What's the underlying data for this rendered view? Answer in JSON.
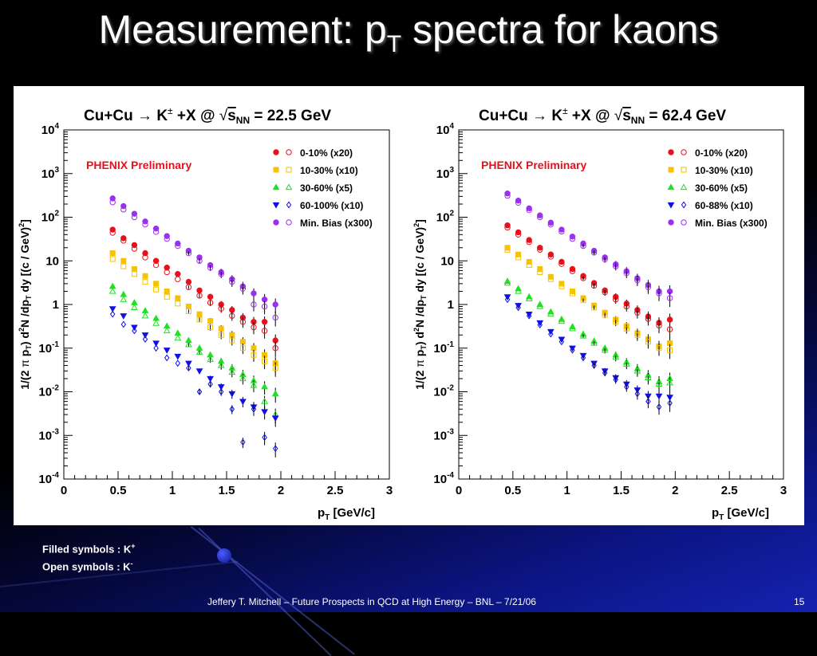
{
  "slide": {
    "title_main": "Measurement: p",
    "title_sub": "T",
    "title_rest": " spectra for kaons",
    "footer": "Jeffery T. Mitchell – Future Prospects in QCD at High Energy – BNL – 7/21/06",
    "page_number": "15",
    "note_filled": "Filled symbols : K",
    "note_filled_sup": "+",
    "note_open": "Open symbols :  K",
    "note_open_sup": "-"
  },
  "colors": {
    "red": "#e8101a",
    "yellow": "#f7c200",
    "green": "#1ee21e",
    "blue": "#1010e6",
    "purple": "#9a30f0"
  },
  "chart_data": [
    {
      "type": "scatter",
      "title": "Cu+Cu → K± +X @  √sNN = 22.5 GeV",
      "title_left": "Cu+Cu",
      "title_mid": "K",
      "title_pm": "±",
      "title_x": "+X @",
      "title_snn": "s",
      "title_nn": "NN",
      "title_energy": "= 22.5 GeV",
      "annotation": "PHENIX Preliminary",
      "xlabel": "p",
      "xlabel_sub": "T",
      "xlabel_unit": "[GeV/c]",
      "ylabel": "1/(2 π p_T) d²N /dp_T dy [(c / GeV)²]",
      "xlim": [
        0,
        3
      ],
      "ylim": [
        0.0001,
        10000
      ],
      "log_y": true,
      "x_ticks": [
        "0",
        "0.5",
        "1",
        "1.5",
        "2",
        "2.5",
        "3"
      ],
      "y_ticks": [
        {
          "base": "10",
          "exp": "-4"
        },
        {
          "base": "10",
          "exp": "-3"
        },
        {
          "base": "10",
          "exp": "-2"
        },
        {
          "base": "10",
          "exp": "-1"
        },
        {
          "base": "1",
          "exp": ""
        },
        {
          "base": "10",
          "exp": ""
        },
        {
          "base": "10",
          "exp": "2"
        },
        {
          "base": "10",
          "exp": "3"
        },
        {
          "base": "10",
          "exp": "4"
        }
      ],
      "legend_position": "top-right",
      "series": [
        {
          "name": "0-10% (x20)",
          "color": "#e8101a",
          "marker": "circle",
          "x": [
            0.45,
            0.55,
            0.65,
            0.75,
            0.85,
            0.95,
            1.05,
            1.15,
            1.25,
            1.35,
            1.45,
            1.55,
            1.65,
            1.75,
            1.85,
            1.95
          ],
          "kplus": [
            52,
            33,
            23,
            15,
            10,
            7,
            5,
            3.3,
            2.1,
            1.5,
            1.0,
            0.75,
            0.5,
            0.4,
            0.4,
            0.15
          ],
          "kminus": [
            44,
            29,
            19,
            12,
            8,
            5.5,
            3.8,
            2.5,
            1.6,
            1.1,
            0.8,
            0.55,
            0.4,
            0.3,
            0.25,
            0.1
          ]
        },
        {
          "name": "10-30% (x10)",
          "color": "#f7c200",
          "marker": "square",
          "x": [
            0.45,
            0.55,
            0.65,
            0.75,
            0.85,
            0.95,
            1.05,
            1.15,
            1.25,
            1.35,
            1.45,
            1.55,
            1.65,
            1.75,
            1.85,
            1.95
          ],
          "kplus": [
            15,
            10,
            6.5,
            4.5,
            3,
            2,
            1.4,
            0.9,
            0.6,
            0.42,
            0.28,
            0.2,
            0.14,
            0.1,
            0.07,
            0.045
          ],
          "kminus": [
            11,
            7.5,
            5,
            3.3,
            2.2,
            1.5,
            1.05,
            0.7,
            0.45,
            0.3,
            0.2,
            0.15,
            0.1,
            0.07,
            0.05,
            0.035
          ]
        },
        {
          "name": "30-60% (x5)",
          "color": "#1ee21e",
          "marker": "triangle",
          "x": [
            0.45,
            0.55,
            0.65,
            0.75,
            0.85,
            0.95,
            1.05,
            1.15,
            1.25,
            1.35,
            1.45,
            1.55,
            1.65,
            1.75,
            1.85,
            1.95
          ],
          "kplus": [
            2.6,
            1.7,
            1.1,
            0.72,
            0.48,
            0.32,
            0.22,
            0.15,
            0.1,
            0.07,
            0.05,
            0.035,
            0.025,
            0.018,
            0.013,
            0.009
          ],
          "kminus": [
            2.0,
            1.3,
            0.85,
            0.55,
            0.37,
            0.25,
            0.17,
            0.12,
            0.08,
            0.055,
            0.04,
            0.028,
            0.02,
            0.014,
            0.006,
            0.003
          ]
        },
        {
          "name": "60-100% (x10)",
          "color": "#1010e6",
          "marker": "triangle-down",
          "x": [
            0.45,
            0.55,
            0.65,
            0.75,
            0.85,
            0.95,
            1.05,
            1.15,
            1.25,
            1.35,
            1.45,
            1.55,
            1.65,
            1.75,
            1.85,
            1.95
          ],
          "kplus": [
            0.8,
            0.55,
            0.3,
            0.2,
            0.13,
            0.09,
            0.065,
            0.045,
            0.03,
            0.02,
            0.013,
            0.009,
            0.006,
            0.0045,
            0.0035,
            0.0025
          ],
          "kminus": [
            0.6,
            0.35,
            0.25,
            0.16,
            0.1,
            0.06,
            0.045,
            0.035,
            0.01,
            0.015,
            0.01,
            0.004,
            0.0007,
            0.004,
            0.0009,
            0.0005
          ]
        },
        {
          "name": "Min. Bias (x300)",
          "color": "#9a30f0",
          "marker": "circle",
          "x": [
            0.45,
            0.55,
            0.65,
            0.75,
            0.85,
            0.95,
            1.05,
            1.15,
            1.25,
            1.35,
            1.45,
            1.55,
            1.65,
            1.75,
            1.85,
            1.95
          ],
          "kplus": [
            270,
            180,
            120,
            80,
            55,
            37,
            25,
            17,
            12,
            8,
            5.5,
            3.8,
            2.6,
            1.8,
            1.3,
            1.0
          ],
          "kminus": [
            220,
            150,
            100,
            68,
            46,
            32,
            22,
            15,
            10,
            7,
            5,
            3.3,
            2.3,
            1.0,
            0.9,
            0.5
          ]
        }
      ]
    },
    {
      "type": "scatter",
      "title": "Cu+Cu → K± +X @  √sNN = 62.4 GeV",
      "title_left": "Cu+Cu",
      "title_mid": "K",
      "title_pm": "±",
      "title_x": "+X @",
      "title_snn": "s",
      "title_nn": "NN",
      "title_energy": "= 62.4 GeV",
      "annotation": "PHENIX Preliminary",
      "xlabel": "p",
      "xlabel_sub": "T",
      "xlabel_unit": "[GeV/c]",
      "ylabel": "1/(2 π p_T) d²N /dp_T dy [(c / GeV)²]",
      "xlim": [
        0,
        3
      ],
      "ylim": [
        0.0001,
        10000
      ],
      "log_y": true,
      "x_ticks": [
        "0",
        "0.5",
        "1",
        "1.5",
        "2",
        "2.5",
        "3"
      ],
      "y_ticks": [
        {
          "base": "10",
          "exp": "-4"
        },
        {
          "base": "10",
          "exp": "-3"
        },
        {
          "base": "10",
          "exp": "-2"
        },
        {
          "base": "10",
          "exp": "-1"
        },
        {
          "base": "1",
          "exp": ""
        },
        {
          "base": "10",
          "exp": ""
        },
        {
          "base": "10",
          "exp": "2"
        },
        {
          "base": "10",
          "exp": "3"
        },
        {
          "base": "10",
          "exp": "4"
        }
      ],
      "legend_position": "top-right",
      "series": [
        {
          "name": "0-10% (x20)",
          "color": "#e8101a",
          "marker": "circle",
          "x": [
            0.45,
            0.55,
            0.65,
            0.75,
            0.85,
            0.95,
            1.05,
            1.15,
            1.25,
            1.35,
            1.45,
            1.55,
            1.65,
            1.75,
            1.85,
            1.95
          ],
          "kplus": [
            65,
            45,
            30,
            20,
            14,
            9.5,
            6.5,
            4.5,
            3.1,
            2.1,
            1.5,
            1.05,
            0.75,
            0.53,
            0.38,
            0.45
          ],
          "kminus": [
            58,
            40,
            27,
            18,
            12.5,
            8.5,
            5.8,
            4,
            2.7,
            1.9,
            1.3,
            0.9,
            0.65,
            0.47,
            0.33,
            0.27
          ]
        },
        {
          "name": "10-30% (x10)",
          "color": "#f7c200",
          "marker": "square",
          "x": [
            0.45,
            0.55,
            0.65,
            0.75,
            0.85,
            0.95,
            1.05,
            1.15,
            1.25,
            1.35,
            1.45,
            1.55,
            1.65,
            1.75,
            1.85,
            1.95
          ],
          "kplus": [
            20,
            14,
            9.5,
            6.5,
            4.3,
            3,
            2,
            1.4,
            0.95,
            0.65,
            0.45,
            0.32,
            0.22,
            0.16,
            0.11,
            0.13
          ],
          "kminus": [
            18,
            12,
            8,
            5.5,
            3.8,
            2.6,
            1.8,
            1.25,
            0.85,
            0.58,
            0.4,
            0.28,
            0.2,
            0.14,
            0.1,
            0.09
          ]
        },
        {
          "name": "30-60% (x5)",
          "color": "#1ee21e",
          "marker": "triangle",
          "x": [
            0.45,
            0.55,
            0.65,
            0.75,
            0.85,
            0.95,
            1.05,
            1.15,
            1.25,
            1.35,
            1.45,
            1.55,
            1.65,
            1.75,
            1.85,
            1.95
          ],
          "kplus": [
            3.4,
            2.3,
            1.5,
            1.0,
            0.68,
            0.46,
            0.31,
            0.21,
            0.145,
            0.1,
            0.07,
            0.048,
            0.034,
            0.024,
            0.017,
            0.02
          ],
          "kminus": [
            3.1,
            2.0,
            1.35,
            0.9,
            0.6,
            0.41,
            0.28,
            0.19,
            0.13,
            0.09,
            0.062,
            0.043,
            0.03,
            0.021,
            0.015,
            0.016
          ]
        },
        {
          "name": "60-88% (x10)",
          "color": "#1010e6",
          "marker": "triangle-down",
          "x": [
            0.45,
            0.55,
            0.65,
            0.75,
            0.85,
            0.95,
            1.05,
            1.15,
            1.25,
            1.35,
            1.45,
            1.55,
            1.65,
            1.75,
            1.85,
            1.95
          ],
          "kplus": [
            1.5,
            0.95,
            0.6,
            0.38,
            0.24,
            0.16,
            0.1,
            0.068,
            0.045,
            0.03,
            0.021,
            0.015,
            0.011,
            0.008,
            0.008,
            0.0075
          ],
          "kminus": [
            1.3,
            0.85,
            0.55,
            0.34,
            0.21,
            0.14,
            0.09,
            0.06,
            0.04,
            0.027,
            0.019,
            0.013,
            0.009,
            0.006,
            0.0045,
            0.0055
          ]
        },
        {
          "name": "Min. Bias (x300)",
          "color": "#9a30f0",
          "marker": "circle",
          "x": [
            0.45,
            0.55,
            0.65,
            0.75,
            0.85,
            0.95,
            1.05,
            1.15,
            1.25,
            1.35,
            1.45,
            1.55,
            1.65,
            1.75,
            1.85,
            1.95
          ],
          "kplus": [
            350,
            240,
            160,
            110,
            75,
            52,
            36,
            25,
            17,
            12,
            8.3,
            5.8,
            4,
            2.8,
            2,
            2
          ],
          "kminus": [
            310,
            215,
            145,
            100,
            68,
            47,
            32,
            22,
            15.5,
            10.8,
            7.5,
            5.2,
            3.6,
            2.5,
            1.8,
            1.4
          ]
        }
      ]
    }
  ]
}
